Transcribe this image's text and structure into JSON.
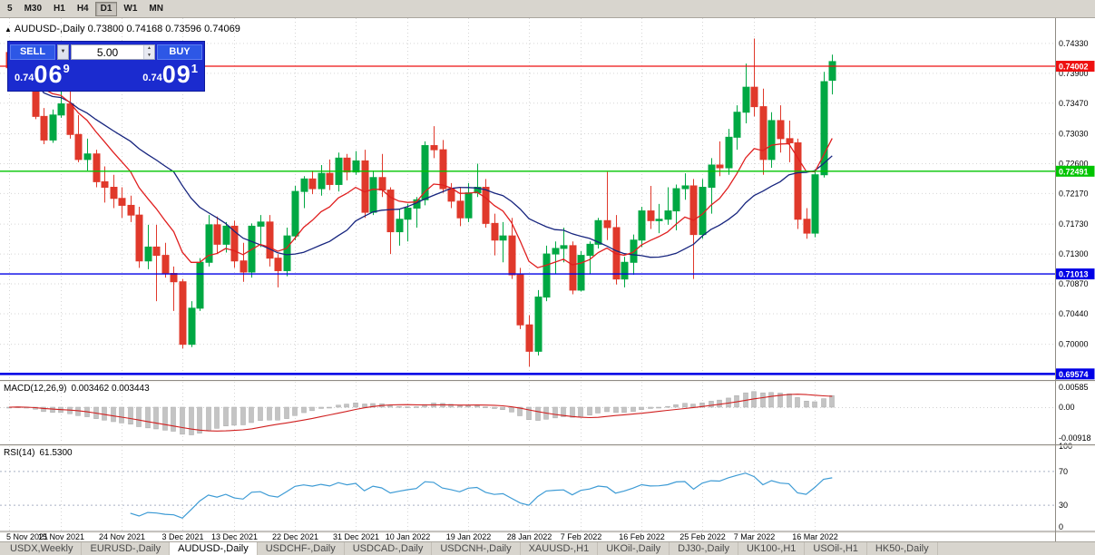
{
  "toolbar": {
    "timeframes": [
      "5",
      "M30",
      "H1",
      "H4",
      "D1",
      "W1",
      "MN"
    ],
    "active": "D1"
  },
  "chart": {
    "header_symbol": "AUDUSD-,Daily",
    "header_ohlc": "0.73800 0.74168 0.73596 0.74069"
  },
  "trade_panel": {
    "sell_label": "SELL",
    "buy_label": "BUY",
    "volume": "5.00",
    "sell_price": {
      "prefix": "0.74",
      "big": "06",
      "sup": "9"
    },
    "buy_price": {
      "prefix": "0.74",
      "big": "09",
      "sup": "1"
    }
  },
  "chart_data": {
    "type": "candlestick",
    "symbol": "AUDUSD-,Daily",
    "current_bar": {
      "open": 0.738,
      "high": 0.74168,
      "low": 0.73596,
      "close": 0.74069
    },
    "price_range": {
      "top": 0.74694,
      "bottom": 0.695
    },
    "price_axis_labels": [
      "0.74330",
      "0.73900",
      "0.73470",
      "0.73030",
      "0.72600",
      "0.72170",
      "0.71730",
      "0.71300",
      "0.70870",
      "0.70440",
      "0.70000"
    ],
    "hlines": [
      {
        "price": 0.74002,
        "label": "0.74002",
        "color": "#ee1010",
        "width": 1.3
      },
      {
        "price": 0.72491,
        "label": "0.72491",
        "color": "#00c400",
        "width": 1.3
      },
      {
        "price": 0.71013,
        "label": "0.71013",
        "color": "#0000e6",
        "width": 1.3
      },
      {
        "price": 0.69574,
        "label": "0.69574",
        "color": "#0000e6",
        "width": 2.6
      }
    ],
    "date_ticks": [
      {
        "label": "5 Nov 2021",
        "i": 0
      },
      {
        "label": "15 Nov 2021",
        "i": 6
      },
      {
        "label": "24 Nov 2021",
        "i": 13
      },
      {
        "label": "3 Dec 2021",
        "i": 20
      },
      {
        "label": "13 Dec 2021",
        "i": 26
      },
      {
        "label": "22 Dec 2021",
        "i": 33
      },
      {
        "label": "31 Dec 2021",
        "i": 40
      },
      {
        "label": "10 Jan 2022",
        "i": 46
      },
      {
        "label": "19 Jan 2022",
        "i": 53
      },
      {
        "label": "28 Jan 2022",
        "i": 60
      },
      {
        "label": "7 Feb 2022",
        "i": 66
      },
      {
        "label": "16 Feb 2022",
        "i": 73
      },
      {
        "label": "25 Feb 2022",
        "i": 80
      },
      {
        "label": "7 Mar 2022",
        "i": 86
      },
      {
        "label": "16 Mar 2022",
        "i": 93
      }
    ],
    "candles": [
      [
        0.742,
        0.7432,
        0.7388,
        0.7398
      ],
      [
        0.7398,
        0.743,
        0.739,
        0.7412
      ],
      [
        0.7412,
        0.7436,
        0.737,
        0.7378
      ],
      [
        0.7378,
        0.7388,
        0.7324,
        0.7328
      ],
      [
        0.7328,
        0.734,
        0.7288,
        0.7294
      ],
      [
        0.7294,
        0.7338,
        0.729,
        0.733
      ],
      [
        0.733,
        0.7368,
        0.7326,
        0.7346
      ],
      [
        0.7346,
        0.7372,
        0.7296,
        0.7302
      ],
      [
        0.7302,
        0.733,
        0.7262,
        0.7266
      ],
      [
        0.7266,
        0.7296,
        0.725,
        0.7274
      ],
      [
        0.7274,
        0.728,
        0.7226,
        0.7234
      ],
      [
        0.7234,
        0.7256,
        0.7204,
        0.7226
      ],
      [
        0.7226,
        0.7244,
        0.7196,
        0.721
      ],
      [
        0.721,
        0.7226,
        0.7182,
        0.72
      ],
      [
        0.72,
        0.7214,
        0.7176,
        0.7186
      ],
      [
        0.7186,
        0.7198,
        0.711,
        0.712
      ],
      [
        0.712,
        0.7172,
        0.7108,
        0.714
      ],
      [
        0.714,
        0.7172,
        0.7062,
        0.7128
      ],
      [
        0.7128,
        0.7146,
        0.7096,
        0.7102
      ],
      [
        0.7102,
        0.7112,
        0.7048,
        0.709
      ],
      [
        0.709,
        0.7094,
        0.6994,
        0.7
      ],
      [
        0.7,
        0.7062,
        0.6996,
        0.7052
      ],
      [
        0.7052,
        0.7124,
        0.7048,
        0.7118
      ],
      [
        0.7118,
        0.7186,
        0.7112,
        0.7172
      ],
      [
        0.7172,
        0.7184,
        0.713,
        0.7144
      ],
      [
        0.7144,
        0.7176,
        0.7132,
        0.717
      ],
      [
        0.717,
        0.7178,
        0.711,
        0.712
      ],
      [
        0.712,
        0.7146,
        0.709,
        0.7104
      ],
      [
        0.7104,
        0.7174,
        0.7096,
        0.717
      ],
      [
        0.717,
        0.7186,
        0.714,
        0.7176
      ],
      [
        0.7176,
        0.7186,
        0.7112,
        0.7124
      ],
      [
        0.7124,
        0.713,
        0.7082,
        0.7106
      ],
      [
        0.7106,
        0.7168,
        0.7098,
        0.7156
      ],
      [
        0.7156,
        0.7228,
        0.715,
        0.722
      ],
      [
        0.722,
        0.7242,
        0.7196,
        0.7238
      ],
      [
        0.7238,
        0.725,
        0.7216,
        0.7224
      ],
      [
        0.7224,
        0.7258,
        0.7214,
        0.7246
      ],
      [
        0.7246,
        0.7266,
        0.7222,
        0.723
      ],
      [
        0.723,
        0.7276,
        0.722,
        0.7268
      ],
      [
        0.7268,
        0.7274,
        0.7236,
        0.7248
      ],
      [
        0.7248,
        0.7278,
        0.7244,
        0.7264
      ],
      [
        0.7264,
        0.728,
        0.7182,
        0.719
      ],
      [
        0.719,
        0.725,
        0.7186,
        0.724
      ],
      [
        0.724,
        0.7274,
        0.7212,
        0.7222
      ],
      [
        0.7222,
        0.7226,
        0.713,
        0.7162
      ],
      [
        0.7162,
        0.7194,
        0.7142,
        0.718
      ],
      [
        0.718,
        0.7202,
        0.7148,
        0.7196
      ],
      [
        0.7196,
        0.7212,
        0.7168,
        0.7208
      ],
      [
        0.7208,
        0.7292,
        0.72,
        0.7286
      ],
      [
        0.7286,
        0.7314,
        0.7268,
        0.728
      ],
      [
        0.728,
        0.7294,
        0.7218,
        0.7224
      ],
      [
        0.7224,
        0.7232,
        0.7196,
        0.7206
      ],
      [
        0.7206,
        0.7226,
        0.717,
        0.7182
      ],
      [
        0.7182,
        0.7232,
        0.7176,
        0.7218
      ],
      [
        0.7218,
        0.726,
        0.7212,
        0.7226
      ],
      [
        0.7226,
        0.7238,
        0.7168,
        0.7174
      ],
      [
        0.7174,
        0.7188,
        0.7128,
        0.715
      ],
      [
        0.715,
        0.7176,
        0.7118,
        0.7156
      ],
      [
        0.7156,
        0.7182,
        0.7094,
        0.71
      ],
      [
        0.71,
        0.711,
        0.7022,
        0.7028
      ],
      [
        0.7028,
        0.7042,
        0.6968,
        0.699
      ],
      [
        0.699,
        0.7078,
        0.6984,
        0.7068
      ],
      [
        0.7068,
        0.7142,
        0.7062,
        0.713
      ],
      [
        0.713,
        0.7148,
        0.7102,
        0.7138
      ],
      [
        0.7138,
        0.7168,
        0.7118,
        0.7142
      ],
      [
        0.7142,
        0.7148,
        0.7072,
        0.7078
      ],
      [
        0.7078,
        0.7134,
        0.7076,
        0.7128
      ],
      [
        0.7128,
        0.7148,
        0.7102,
        0.7144
      ],
      [
        0.7144,
        0.7182,
        0.7138,
        0.7178
      ],
      [
        0.7178,
        0.7248,
        0.715,
        0.7168
      ],
      [
        0.7168,
        0.7186,
        0.7086,
        0.7094
      ],
      [
        0.7094,
        0.7126,
        0.7082,
        0.7118
      ],
      [
        0.7118,
        0.7158,
        0.71,
        0.715
      ],
      [
        0.715,
        0.7198,
        0.714,
        0.7192
      ],
      [
        0.7192,
        0.7228,
        0.7166,
        0.7178
      ],
      [
        0.7178,
        0.7202,
        0.716,
        0.718
      ],
      [
        0.718,
        0.7226,
        0.7172,
        0.7192
      ],
      [
        0.7192,
        0.723,
        0.7164,
        0.7224
      ],
      [
        0.7224,
        0.7246,
        0.7208,
        0.7228
      ],
      [
        0.7228,
        0.7238,
        0.7094,
        0.7158
      ],
      [
        0.7158,
        0.7238,
        0.7152,
        0.7226
      ],
      [
        0.7226,
        0.7268,
        0.7188,
        0.7258
      ],
      [
        0.7258,
        0.7292,
        0.7242,
        0.7254
      ],
      [
        0.7254,
        0.731,
        0.7244,
        0.7298
      ],
      [
        0.7298,
        0.7344,
        0.728,
        0.7334
      ],
      [
        0.7334,
        0.7404,
        0.7318,
        0.737
      ],
      [
        0.737,
        0.744,
        0.7328,
        0.7342
      ],
      [
        0.7342,
        0.7368,
        0.7244,
        0.7266
      ],
      [
        0.7266,
        0.7334,
        0.7254,
        0.7322
      ],
      [
        0.7322,
        0.7344,
        0.7276,
        0.7296
      ],
      [
        0.7296,
        0.7322,
        0.7262,
        0.729
      ],
      [
        0.729,
        0.7296,
        0.7166,
        0.718
      ],
      [
        0.718,
        0.7196,
        0.7152,
        0.716
      ],
      [
        0.716,
        0.7252,
        0.7154,
        0.7244
      ],
      [
        0.7244,
        0.7392,
        0.724,
        0.7378
      ],
      [
        0.738,
        0.74168,
        0.73596,
        0.74069
      ]
    ],
    "colors": {
      "up": "#00a843",
      "down": "#e0392b",
      "ma_fast": "#e01f1f",
      "ma_slow": "#16247e",
      "macd_bar": "#c4c4c4",
      "macd_signal": "#d01f1f",
      "rsi_line": "#3d9bd5"
    },
    "moving_averages": [
      {
        "type": "ema",
        "period": 10
      },
      {
        "type": "sma",
        "period": 20
      }
    ],
    "macd": {
      "label": "MACD(12,26,9)",
      "values_text": "0.003462 0.003443",
      "params": [
        12,
        26,
        9
      ],
      "axis_labels": [
        "0.00585",
        "0.00",
        "-0.00918"
      ],
      "axis_values": [
        0.00585,
        0,
        -0.00918
      ]
    },
    "rsi": {
      "label": "RSI(14)",
      "value_text": "61.5300",
      "period": 14,
      "axis_labels": [
        "100",
        "70",
        "30",
        "0"
      ],
      "axis_values": [
        100,
        70,
        30,
        0
      ],
      "levels": [
        70,
        30
      ]
    }
  },
  "tabs": {
    "active": "AUDUSD-,Daily",
    "items": [
      {
        "label": "USDX,Weekly"
      },
      {
        "label": "EURUSD-,Daily"
      },
      {
        "label": "AUDUSD-,Daily"
      },
      {
        "label": "USDCHF-,Daily"
      },
      {
        "label": "USDCAD-,Daily"
      },
      {
        "label": "USDCNH-,Daily"
      },
      {
        "label": "XAUUSD-,H1"
      },
      {
        "label": "UKOil-,Daily"
      },
      {
        "label": "DJ30-,Daily"
      },
      {
        "label": "UK100-,H1"
      },
      {
        "label": "USOil-,H1"
      },
      {
        "label": "HK50-,Daily"
      }
    ]
  }
}
